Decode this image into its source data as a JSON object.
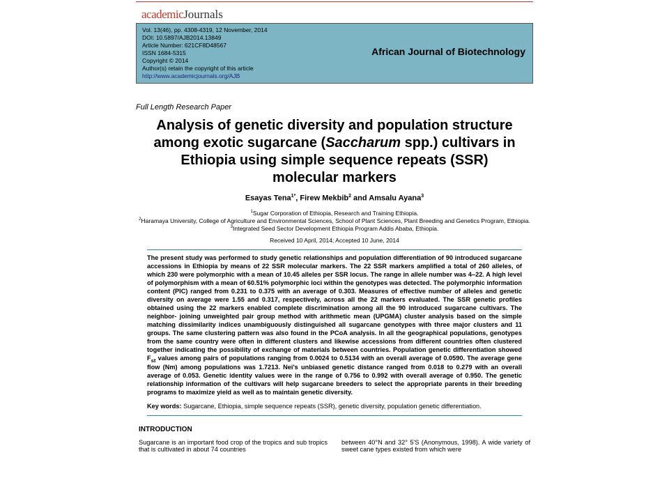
{
  "logo": {
    "prefix": "academic",
    "suffix": "Journals"
  },
  "pubinfo": {
    "vol": "Vol. 13(46), pp. 4308-4319, 12 November, 2014",
    "doi": "DOI: 10.5897/AJB2014.13849",
    "artno": "Article Number: 621CF8D48567",
    "issn": "ISSN 1684-5315",
    "copyright": "Copyright © 2014",
    "retain": "Author(s) retain the copyright of this article",
    "url": "http://www.academicjournals.org/AJB"
  },
  "journal": "African Journal of Biotechnology",
  "section": "Full Length Research Paper",
  "title_l1": "Analysis of genetic diversity and population structure",
  "title_l2a": "among exotic sugarcane (",
  "title_l2i": "Saccharum",
  "title_l2b": " spp.) cultivars in",
  "title_l3": "Ethiopia using simple sequence repeats (SSR)",
  "title_l4": "molecular markers",
  "authors_html": "Esayas Tena<sup>1*</sup>, Firew Mekbib<sup>2</sup> and Amsalu Ayana<sup>3</sup>",
  "affil": {
    "l1": "<sup>1</sup>Sugar Corporation of Ethiopia, Research and Training Ethiopia.",
    "l2": "<sup>2</sup>Haramaya University, College of Agriculture and Environmental Sciences, School of Plant Sciences, Plant Breeding and Genetics Program, Ethiopia.",
    "l3": "<sup>3</sup>Integrated Seed Sector Development Ethiopia Program Addis Ababa, Ethiopia."
  },
  "dates": "Received 10 April, 2014; Accepted 10 June, 2014",
  "abstract": "The present study was performed to study genetic relationships and population differentiation of 90 introduced sugarcane accessions in Ethiopia by means of 22 SSR molecular markers. The 22 SSR markers amplified a total of 260 alleles, of which 230 were polymorphic with a mean of 10.45 alleles per SSR locus. The range in allele number was 4–22. A high level of polymorphism with a mean of 60.51% polymorphic loci within the genotypes was detected. The polymorphic information content (PIC) ranged from 0.231 to 0.375 with an average of 0.303. Measures of effective number of alleles and genetic diversity on average were 1.55 and 0.317, respectively, across all the 22 markers evaluated. The SSR genetic profiles obtained using the 22 markers enabled complete discrimination among all the 90 introduced sugarcane cultivars. The neighbor- joining unweighted pair group method with arithmetic mean (UPGMA) cluster analysis based on the simple matching dissimilarity indices unambiguously distinguished all sugarcane genotypes with three major clusters and 11 groups. The same clustering pattern was also found in the PCoA analysis. In all the geographical populations, genotypes from the same country were often in different clusters and likewise accessions from different countries often clustered together indicating the possibility of exchange of materials between countries. Population genetic differentiation showed F<sub>st</sub> values among pairs of populations ranging from 0.0024 to 0.5134 with an overall average of 0.0590. The average gene flow (Nm) among populations was 1.7213. Nei's unbiased genetic distance ranged from 0.018 to 0.279 with an overall average of 0.053. Genetic identity values were in the range of 0.756 to 0.992 with overall average of 0.950. The genetic relationship information of the cultivars will help sugarcane breeders to select the appropriate parents in their breeding programs to maximize yield as well as to maintain genetic diversity.",
  "keywords_label": "Key words:",
  "keywords": " Sugarcane, Ethiopia, simple sequence repeats (SSR), genetic diversity, population genetic differentiation.",
  "intro_head": "INTRODUCTION",
  "intro_col1": "Sugarcane is an important food crop of the tropics and sub tropics that is cultivated in about 74 countries",
  "intro_col2": "between 40°N and 32° 5'S (Anonymous, 1998). A wide variety of sweet cane types existed from which were"
}
